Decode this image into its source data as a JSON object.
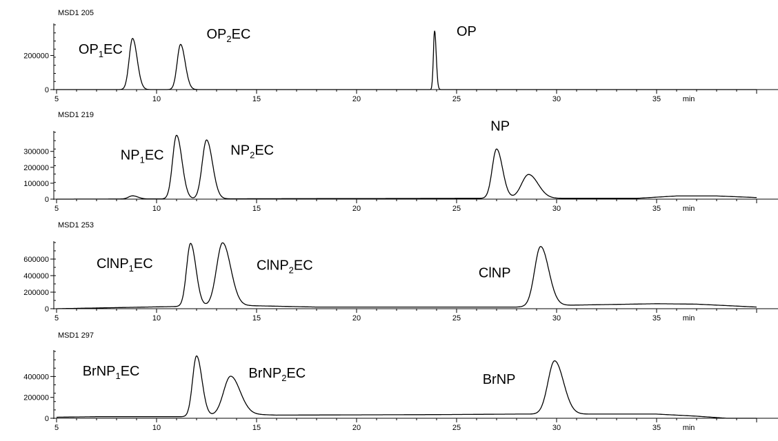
{
  "chart_data": [
    {
      "type": "line",
      "title": "MSD1 205",
      "xlabel": "min",
      "x_ticks": [
        "5",
        "10",
        "15",
        "20",
        "25",
        "30",
        "35"
      ],
      "xlim": [
        5,
        40
      ],
      "ylim": [
        0,
        380000
      ],
      "y_ticks": [
        {
          "value": 0,
          "label": "0"
        },
        {
          "value": 200000,
          "label": "200000"
        }
      ],
      "peaks": [
        {
          "x": 8.8,
          "height": 300000,
          "width": 0.17
        },
        {
          "x": 11.2,
          "height": 265000,
          "width": 0.17
        },
        {
          "x": 23.9,
          "height": 345000,
          "width": 0.06
        }
      ],
      "baseline_points": [
        [
          5,
          0
        ],
        [
          40,
          0
        ]
      ],
      "annotations": [
        {
          "main": "OP",
          "sub": "1",
          "tail": "EC",
          "x": 6.1,
          "y": 210000
        },
        {
          "main": "OP",
          "sub": "2",
          "tail": "EC",
          "x": 12.5,
          "y": 300000
        },
        {
          "main": "OP",
          "sub": "",
          "tail": "",
          "x": 25.0,
          "y": 315000
        }
      ]
    },
    {
      "type": "line",
      "title": "MSD1 219",
      "xlabel": "min",
      "x_ticks": [
        "5",
        "10",
        "15",
        "20",
        "25",
        "30",
        "35"
      ],
      "xlim": [
        5,
        40
      ],
      "ylim": [
        0,
        420000
      ],
      "y_ticks": [
        {
          "value": 0,
          "label": "0"
        },
        {
          "value": 100000,
          "label": "100000"
        },
        {
          "value": 200000,
          "label": "200000"
        },
        {
          "value": 300000,
          "label": "300000"
        }
      ],
      "peaks": [
        {
          "x": 8.8,
          "height": 20000,
          "width": 0.2
        },
        {
          "x": 11.0,
          "height": 400000,
          "width": 0.2
        },
        {
          "x": 12.5,
          "height": 370000,
          "width": 0.22
        },
        {
          "x": 27.0,
          "height": 310000,
          "width": 0.22
        },
        {
          "x": 28.6,
          "height": 150000,
          "width": 0.35
        }
      ],
      "baseline_points": [
        [
          5,
          0
        ],
        [
          25,
          5000
        ],
        [
          34,
          5000
        ],
        [
          36,
          20000
        ],
        [
          38,
          20000
        ],
        [
          40,
          10000
        ]
      ],
      "annotations": [
        {
          "main": "NP",
          "sub": "1",
          "tail": "EC",
          "x": 8.2,
          "y": 250000
        },
        {
          "main": "NP",
          "sub": "2",
          "tail": "EC",
          "x": 13.7,
          "y": 280000
        },
        {
          "main": "NP",
          "sub": "",
          "tail": "",
          "x": 26.7,
          "y": 430000
        }
      ]
    },
    {
      "type": "line",
      "title": "MSD1 253",
      "xlabel": "min",
      "x_ticks": [
        "5",
        "10",
        "15",
        "20",
        "25",
        "30",
        "35"
      ],
      "xlim": [
        5,
        40
      ],
      "ylim": [
        0,
        800000
      ],
      "y_ticks": [
        {
          "value": 0,
          "label": "0"
        },
        {
          "value": 200000,
          "label": "200000"
        },
        {
          "value": 400000,
          "label": "400000"
        },
        {
          "value": 600000,
          "label": "600000"
        }
      ],
      "peaks": [
        {
          "x": 11.7,
          "height": 760000,
          "width": 0.2
        },
        {
          "x": 13.3,
          "height": 760000,
          "width": 0.3
        },
        {
          "x": 29.2,
          "height": 720000,
          "width": 0.3
        }
      ],
      "baseline_points": [
        [
          5,
          0
        ],
        [
          14,
          40000
        ],
        [
          18,
          20000
        ],
        [
          28,
          20000
        ],
        [
          30,
          40000
        ],
        [
          35,
          60000
        ],
        [
          37,
          55000
        ],
        [
          40,
          20000
        ]
      ],
      "annotations": [
        {
          "main": "ClNP",
          "sub": "1",
          "tail": "EC",
          "x": 7.0,
          "y": 490000
        },
        {
          "main": "ClNP",
          "sub": "2",
          "tail": "EC",
          "x": 15.0,
          "y": 470000
        },
        {
          "main": "ClNP",
          "sub": "",
          "tail": "",
          "x": 26.1,
          "y": 380000
        }
      ]
    },
    {
      "type": "line",
      "title": "MSD1 297",
      "xlabel": "min",
      "x_ticks": [
        "5",
        "10",
        "15",
        "20",
        "25",
        "30",
        "35"
      ],
      "xlim": [
        5,
        40
      ],
      "ylim": [
        0,
        640000
      ],
      "y_ticks": [
        {
          "value": 0,
          "label": "0"
        },
        {
          "value": 200000,
          "label": "200000"
        },
        {
          "value": 400000,
          "label": "400000"
        }
      ],
      "peaks": [
        {
          "x": 12.0,
          "height": 580000,
          "width": 0.2
        },
        {
          "x": 13.7,
          "height": 370000,
          "width": 0.35
        },
        {
          "x": 29.9,
          "height": 510000,
          "width": 0.33
        }
      ],
      "baseline_points": [
        [
          5,
          10000
        ],
        [
          7,
          15000
        ],
        [
          11.8,
          15000
        ],
        [
          14.5,
          40000
        ],
        [
          16,
          30000
        ],
        [
          24,
          35000
        ],
        [
          28,
          40000
        ],
        [
          35,
          40000
        ],
        [
          37,
          20000
        ],
        [
          38.5,
          0
        ],
        [
          39,
          0
        ]
      ],
      "annotations": [
        {
          "main": "BrNP",
          "sub": "1",
          "tail": "EC",
          "x": 6.3,
          "y": 410000
        },
        {
          "main": "BrNP",
          "sub": "2",
          "tail": "EC",
          "x": 14.6,
          "y": 390000
        },
        {
          "main": "BrNP",
          "sub": "",
          "tail": "",
          "x": 26.3,
          "y": 330000
        }
      ]
    }
  ]
}
